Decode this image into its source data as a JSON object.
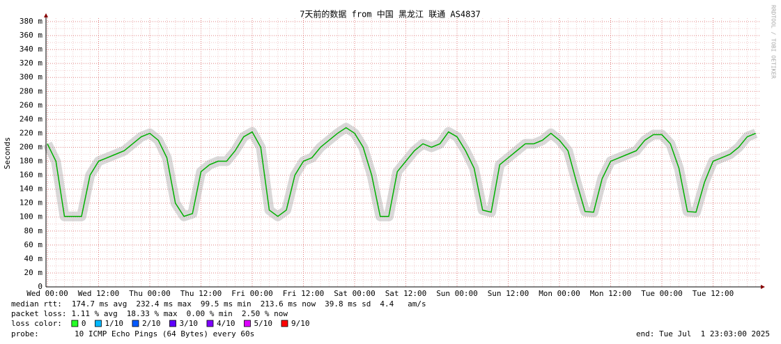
{
  "chart_data": {
    "type": "line",
    "title": "7天前的数据 from 中国 黑龙江 联通 AS4837",
    "y_label": "Seconds",
    "x": [
      "Wed 00:00",
      "Wed 02:00",
      "Wed 04:00",
      "Wed 06:00",
      "Wed 08:00",
      "Wed 10:00",
      "Wed 12:00",
      "Wed 14:00",
      "Wed 16:00",
      "Wed 18:00",
      "Wed 20:00",
      "Wed 22:00",
      "Thu 00:00",
      "Thu 02:00",
      "Thu 04:00",
      "Thu 06:00",
      "Thu 08:00",
      "Thu 10:00",
      "Thu 12:00",
      "Thu 14:00",
      "Thu 16:00",
      "Thu 18:00",
      "Thu 20:00",
      "Thu 22:00",
      "Fri 00:00",
      "Fri 02:00",
      "Fri 04:00",
      "Fri 06:00",
      "Fri 08:00",
      "Fri 10:00",
      "Fri 12:00",
      "Fri 14:00",
      "Fri 16:00",
      "Fri 18:00",
      "Fri 20:00",
      "Fri 22:00",
      "Sat 00:00",
      "Sat 02:00",
      "Sat 04:00",
      "Sat 06:00",
      "Sat 08:00",
      "Sat 10:00",
      "Sat 12:00",
      "Sat 14:00",
      "Sat 16:00",
      "Sat 18:00",
      "Sat 20:00",
      "Sat 22:00",
      "Sun 00:00",
      "Sun 02:00",
      "Sun 04:00",
      "Sun 06:00",
      "Sun 08:00",
      "Sun 10:00",
      "Sun 12:00",
      "Sun 14:00",
      "Sun 16:00",
      "Sun 18:00",
      "Sun 20:00",
      "Sun 22:00",
      "Mon 00:00",
      "Mon 02:00",
      "Mon 04:00",
      "Mon 06:00",
      "Mon 08:00",
      "Mon 10:00",
      "Mon 12:00",
      "Mon 14:00",
      "Mon 16:00",
      "Mon 18:00",
      "Mon 20:00",
      "Mon 22:00",
      "Tue 00:00",
      "Tue 02:00",
      "Tue 04:00",
      "Tue 06:00",
      "Tue 08:00",
      "Tue 10:00",
      "Tue 12:00",
      "Tue 14:00",
      "Tue 16:00",
      "Tue 18:00",
      "Tue 20:00",
      "Tue 22:00"
    ],
    "xticks": [
      "Wed 00:00",
      "Wed 12:00",
      "Thu 00:00",
      "Thu 12:00",
      "Fri 00:00",
      "Fri 12:00",
      "Sat 00:00",
      "Sat 12:00",
      "Sun 00:00",
      "Sun 12:00",
      "Mon 00:00",
      "Mon 12:00",
      "Tue 00:00",
      "Tue 12:00"
    ],
    "ylim": [
      0,
      0.385
    ],
    "yticks": [
      0,
      {
        "value": 0.02,
        "label": "20 m"
      },
      {
        "value": 0.04,
        "label": "40 m"
      },
      {
        "value": 0.06,
        "label": "60 m"
      },
      {
        "value": 0.08,
        "label": "80 m"
      },
      {
        "value": 0.1,
        "label": "100 m"
      },
      {
        "value": 0.12,
        "label": "120 m"
      },
      {
        "value": 0.14,
        "label": "140 m"
      },
      {
        "value": 0.16,
        "label": "160 m"
      },
      {
        "value": 0.18,
        "label": "180 m"
      },
      {
        "value": 0.2,
        "label": "200 m"
      },
      {
        "value": 0.22,
        "label": "220 m"
      },
      {
        "value": 0.24,
        "label": "240 m"
      },
      {
        "value": 0.26,
        "label": "260 m"
      },
      {
        "value": 0.28,
        "label": "280 m"
      },
      {
        "value": 0.3,
        "label": "300 m"
      },
      {
        "value": 0.32,
        "label": "320 m"
      },
      {
        "value": 0.34,
        "label": "340 m"
      },
      {
        "value": 0.36,
        "label": "360 m"
      },
      {
        "value": 0.38,
        "label": "380 m"
      }
    ],
    "grid": true,
    "series": [
      {
        "name": "median rtt:",
        "color": "#00b000",
        "values": [
          0.205,
          0.18,
          0.101,
          0.101,
          0.101,
          0.16,
          0.18,
          0.185,
          0.19,
          0.195,
          0.205,
          0.215,
          0.22,
          0.21,
          0.185,
          0.12,
          0.101,
          0.105,
          0.165,
          0.175,
          0.18,
          0.18,
          0.195,
          0.215,
          0.222,
          0.2,
          0.11,
          0.101,
          0.11,
          0.16,
          0.18,
          0.185,
          0.2,
          0.21,
          0.22,
          0.228,
          0.22,
          0.2,
          0.16,
          0.101,
          0.101,
          0.165,
          0.18,
          0.195,
          0.205,
          0.2,
          0.205,
          0.222,
          0.215,
          0.195,
          0.17,
          0.11,
          0.107,
          0.175,
          0.185,
          0.195,
          0.205,
          0.205,
          0.21,
          0.22,
          0.21,
          0.195,
          0.15,
          0.108,
          0.107,
          0.155,
          0.18,
          0.185,
          0.19,
          0.195,
          0.21,
          0.218,
          0.218,
          0.205,
          0.17,
          0.108,
          0.107,
          0.15,
          0.18,
          0.185,
          0.19,
          0.2,
          0.215,
          0.22
        ]
      }
    ]
  },
  "stats": {
    "median_rtt": [
      "174.7 ms avg",
      "232.4 ms max",
      "99.5 ms min",
      "213.6 ms now",
      "39.8 ms sd",
      "4.4   am/s"
    ],
    "packet_loss_label": "packet loss:",
    "packet_loss": [
      "1.11 % avg",
      "18.33 % max",
      "0.00 % min",
      "2.50 % now"
    ],
    "loss_color_label": "loss color:",
    "loss_colors": [
      {
        "label": "0",
        "color": "#26ff26"
      },
      {
        "label": "1/10",
        "color": "#00b8ff"
      },
      {
        "label": "2/10",
        "color": "#0059ff"
      },
      {
        "label": "3/10",
        "color": "#5e00ff"
      },
      {
        "label": "4/10",
        "color": "#7e00ff"
      },
      {
        "label": "5/10",
        "color": "#dd00ff"
      },
      {
        "label": "9/10",
        "color": "#ff0000"
      }
    ],
    "probe_label": "probe:",
    "probe": "10 ICMP Echo Pings (64 Bytes) every 60s",
    "end": "end: Tue Jul  1 23:03:00 2025"
  },
  "side_text": "RRDTOOL / TOBI OETIKER"
}
